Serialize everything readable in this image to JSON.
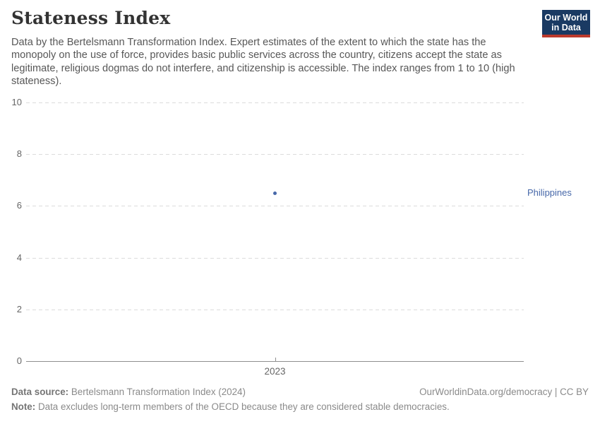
{
  "header": {
    "title": "Stateness Index",
    "subtitle": "Data by the Bertelsmann Transformation Index. Expert estimates of the extent to which the state has the monopoly on the use of force, provides basic public services across the country, citizens accept the state as legitimate, religious dogmas do not interfere, and citizenship is accessible. The index ranges from 1 to 10 (high stateness).",
    "logo": {
      "line1": "Our World",
      "line2": "in Data"
    }
  },
  "chart_data": {
    "type": "scatter",
    "title": "Stateness Index",
    "x": [
      "2023"
    ],
    "series": [
      {
        "name": "Philippines",
        "values": [
          6.5
        ],
        "color": "#4768A9"
      }
    ],
    "xlabel": "",
    "ylabel": "",
    "ylim": [
      0,
      10
    ],
    "yticks": [
      0,
      2,
      4,
      6,
      8,
      10
    ],
    "grid": "horizontal-dashed",
    "legend_position": "right-of-point"
  },
  "footer": {
    "datasource_label": "Data source:",
    "datasource_value": "Bertelsmann Transformation Index (2024)",
    "credit": "OurWorldinData.org/democracy | CC BY",
    "note_label": "Note:",
    "note_value": "Data excludes long-term members of the OECD because they are considered stable democracies."
  },
  "colors": {
    "series_blue": "#4768A9",
    "logo_navy": "#1a3a63",
    "logo_red": "#bc3a2d",
    "gridline": "#dcdcdc",
    "axis": "#8f8f8f",
    "tick_text": "#666666",
    "subtitle_text": "#575757",
    "footer_text": "#8a8a8a"
  }
}
